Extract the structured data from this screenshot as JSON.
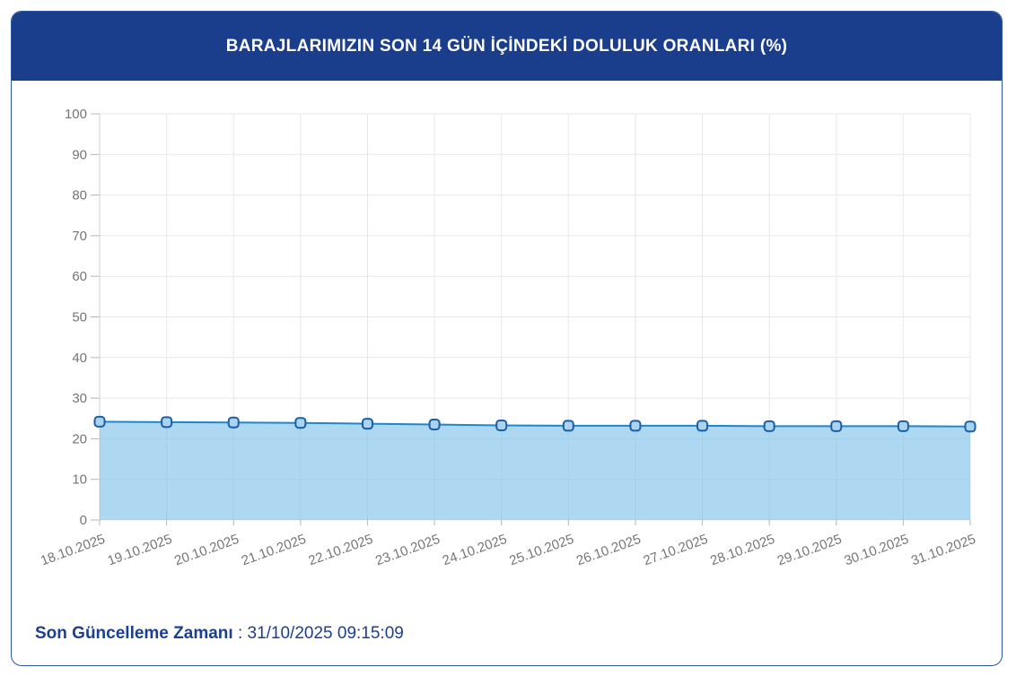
{
  "header": {
    "title": "BARAJLARIMIZIN SON 14 GÜN İÇİNDEKİ DOLULUK ORANLARI (%)"
  },
  "footer": {
    "label": "Son Güncelleme Zamanı",
    "separator": " : ",
    "value": "31/10/2025 09:15:09"
  },
  "colors": {
    "header_bg": "#1a3e8c",
    "card_border": "#2b56a3",
    "footer_text": "#1c3f8f",
    "title_text": "#ffffff",
    "grid": "#e7e7e7",
    "axis_line": "#cfcfcf",
    "tick": "#b5b5b5",
    "axis_text": "#757575",
    "line": "#1f86c9",
    "area_fill": "#7cbfe9",
    "marker_fill": "#a9d3ee",
    "marker_border": "#1a5fa5"
  },
  "chart_data": {
    "type": "area",
    "title": "BARAJLARIMIZIN SON 14 GÜN İÇİNDEKİ DOLULUK ORANLARI (%)",
    "categories": [
      "18.10.2025",
      "19.10.2025",
      "20.10.2025",
      "21.10.2025",
      "22.10.2025",
      "23.10.2025",
      "24.10.2025",
      "25.10.2025",
      "26.10.2025",
      "27.10.2025",
      "28.10.2025",
      "29.10.2025",
      "30.10.2025",
      "31.10.2025"
    ],
    "values": [
      24.2,
      24.1,
      24.0,
      23.9,
      23.7,
      23.5,
      23.3,
      23.2,
      23.2,
      23.2,
      23.1,
      23.1,
      23.1,
      23.0
    ],
    "xlabel": "",
    "ylabel": "",
    "ylim": [
      0,
      100
    ],
    "ytick_step": 10,
    "grid": true,
    "legend": false,
    "x_label_rotation": -20
  }
}
